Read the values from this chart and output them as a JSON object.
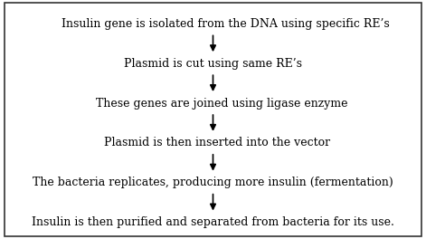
{
  "steps": [
    "Insulin gene is isolated from the DNA using specific RE’s",
    "Plasmid is cut using same RE’s",
    "These genes are joined using ligase enzyme",
    "Plasmid is then inserted into the vector",
    "The bacteria replicates, producing more insulin (fermentation)",
    "Insulin is then purified and separated from bacteria for its use."
  ],
  "background_color": "#ffffff",
  "border_color": "#333333",
  "text_color": "#000000",
  "arrow_color": "#000000",
  "font_size": 9.0,
  "fig_width": 4.71,
  "fig_height": 2.64,
  "dpi": 100
}
